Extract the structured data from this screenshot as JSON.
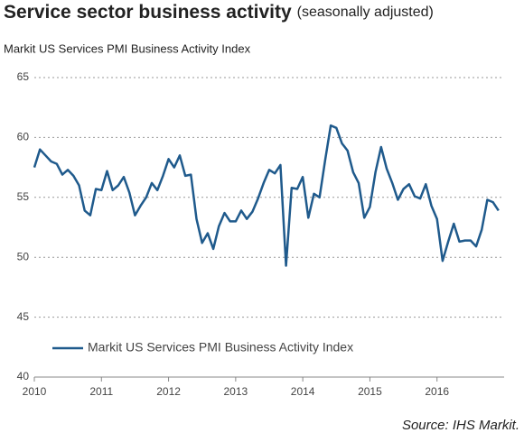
{
  "chart_data": {
    "type": "line",
    "title": "Service sector business activity",
    "title_note": "(seasonally adjusted)",
    "subtitle": "Markit US Services PMI Business Activity Index",
    "source": "Source: IHS Markit.",
    "categories": [
      "2010",
      null,
      null,
      null,
      null,
      null,
      null,
      null,
      null,
      null,
      null,
      null,
      "2011",
      null,
      null,
      null,
      null,
      null,
      null,
      null,
      null,
      null,
      null,
      null,
      "2012",
      null,
      null,
      null,
      null,
      null,
      null,
      null,
      null,
      null,
      null,
      null,
      "2013",
      null,
      null,
      null,
      null,
      null,
      null,
      null,
      null,
      null,
      null,
      null,
      "2014",
      null,
      null,
      null,
      null,
      null,
      null,
      null,
      null,
      null,
      null,
      null,
      "2015",
      null,
      null,
      null,
      null,
      null,
      null,
      null,
      null,
      null,
      null,
      null,
      "2016",
      null,
      null,
      null,
      null,
      null,
      null,
      null,
      null,
      null,
      null,
      null
    ],
    "series": [
      {
        "name": "Markit US Services PMI Business Activity Index",
        "color": "#1f5a8c",
        "values": [
          57.5,
          59.0,
          58.5,
          58.0,
          57.8,
          56.9,
          57.3,
          56.8,
          56.0,
          53.9,
          53.5,
          55.7,
          55.6,
          57.2,
          55.6,
          56.0,
          56.7,
          55.4,
          53.5,
          54.3,
          55.0,
          56.2,
          55.6,
          56.8,
          58.2,
          57.5,
          58.5,
          56.8,
          56.9,
          53.2,
          51.2,
          52.0,
          50.7,
          52.6,
          53.7,
          53.0,
          53.0,
          53.9,
          53.2,
          53.8,
          54.9,
          56.2,
          57.3,
          57.0,
          57.7,
          49.3,
          55.8,
          55.7,
          56.7,
          53.3,
          55.3,
          55.0,
          58.1,
          61.0,
          60.8,
          59.5,
          58.9,
          57.1,
          56.2,
          53.3,
          54.2,
          57.1,
          59.2,
          57.4,
          56.2,
          54.8,
          55.7,
          56.1,
          55.1,
          54.9,
          56.1,
          54.3,
          53.2,
          49.7,
          51.3,
          52.8,
          51.3,
          51.4,
          51.4,
          50.9,
          52.3,
          54.8,
          54.6,
          53.9
        ]
      }
    ],
    "ylim": [
      40,
      65
    ],
    "yticks": [
      40,
      45,
      50,
      55,
      60,
      65
    ],
    "grid": true,
    "legend": "lower left"
  }
}
